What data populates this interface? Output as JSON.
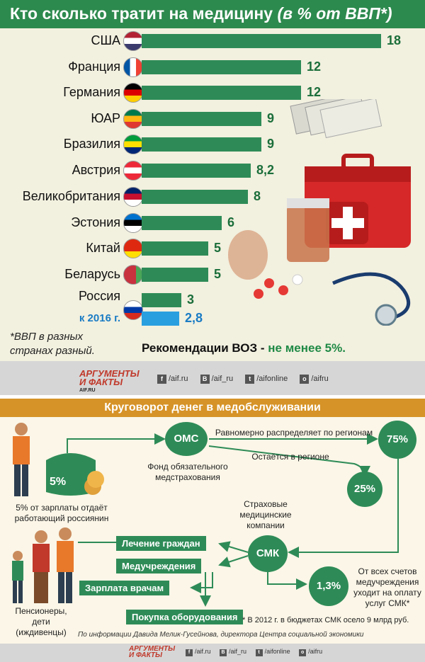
{
  "header": {
    "title": "Кто сколько тратит на медицину",
    "title_paren": "(в % от ВВП*)"
  },
  "colors": {
    "green": "#2e8b57",
    "blue": "#2a9fe0",
    "orange": "#d69327"
  },
  "chart_data": {
    "type": "bar",
    "categories": [
      "США",
      "Франция",
      "Германия",
      "ЮАР",
      "Бразилия",
      "Австрия",
      "Великобритания",
      "Эстония",
      "Китай",
      "Беларусь",
      "Россия",
      "к 2016 г."
    ],
    "values": [
      18,
      12,
      12,
      9,
      9,
      8.2,
      8,
      6,
      5,
      5,
      3,
      2.8
    ],
    "value_labels": [
      "18",
      "12",
      "12",
      "9",
      "9",
      "8,2",
      "8",
      "6",
      "5",
      "5",
      "3",
      "2,8"
    ],
    "xlim": [
      0,
      18
    ]
  },
  "flags": [
    "us-flag-icon",
    "france-flag-icon",
    "germany-flag-icon",
    "south-africa-flag-icon",
    "brazil-flag-icon",
    "austria-flag-icon",
    "uk-flag-icon",
    "estonia-flag-icon",
    "china-flag-icon",
    "belarus-flag-icon",
    "russia-flag-icon"
  ],
  "note": {
    "line1": "*ВВП в разных",
    "line2": "странах разный."
  },
  "who": {
    "prefix": "Рекомендации ВОЗ - ",
    "value": "не менее 5%."
  },
  "footer": {
    "logo_line1": "АРГУМЕНТЫ",
    "logo_line2": "И ФАКТЫ",
    "logo_site": "AIF.RU",
    "socials": [
      {
        "icon": "f",
        "label": "/aif.ru"
      },
      {
        "icon": "В",
        "label": "/aif_ru"
      },
      {
        "icon": "t",
        "label": "/aifonline"
      },
      {
        "icon": "о",
        "label": "/aifru"
      }
    ]
  },
  "flow": {
    "title": "Круговорот денег в медобслуживании",
    "wallet_pct": "5%",
    "worker_text": "5% от зарплаты отдаёт работающий россиянин",
    "oms": "ОМС",
    "oms_label": "Фонд обязательного медстрахования",
    "edge_top": "Равномерно распределяет по регионам",
    "edge_mid": "Остаётся в регионе",
    "pct_75": "75%",
    "pct_25": "25%",
    "insurer_label": "Страховые медицинские компании",
    "smk": "СМК",
    "treatment": "Лечение граждан",
    "institutions": "Медучреждения",
    "salaries": "Зарплата врачам",
    "equipment": "Покупка оборудования",
    "pct_13": "1,3%",
    "pct_13_text": "От всех счетов медучреждения уходит на оплату услуг СМК*",
    "dependents": "Пенсионеры, дети (иждивенцы)",
    "footnote": "* В 2012 г. в бюджетах СМК осело 9 млрд руб.",
    "source": "По информации Давида Мелик-Гусейнова, директора Центра социальной экономики"
  }
}
